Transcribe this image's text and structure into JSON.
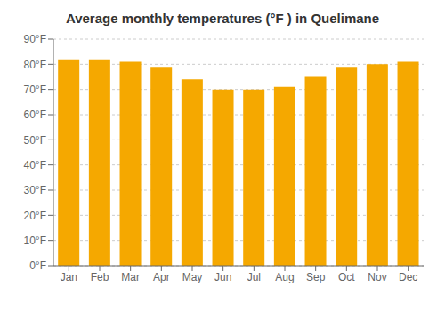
{
  "chart_data": {
    "type": "bar",
    "title": "Average monthly temperatures (°F ) in Quelimane",
    "categories": [
      "Jan",
      "Feb",
      "Mar",
      "Apr",
      "May",
      "Jun",
      "Jul",
      "Aug",
      "Sep",
      "Oct",
      "Nov",
      "Dec"
    ],
    "values": [
      82,
      82,
      81,
      79,
      74,
      70,
      70,
      71,
      75,
      79,
      80,
      81
    ],
    "color": "#F5A800",
    "ylim": [
      0,
      90
    ],
    "yticks": [
      {
        "value": 0,
        "label": "0°F"
      },
      {
        "value": 10,
        "label": "10°F"
      },
      {
        "value": 20,
        "label": "20°F"
      },
      {
        "value": 30,
        "label": "30°F"
      },
      {
        "value": 40,
        "label": "40°F"
      },
      {
        "value": 50,
        "label": "50°F"
      },
      {
        "value": 60,
        "label": "60°F"
      },
      {
        "value": 70,
        "label": "70°F"
      },
      {
        "value": 80,
        "label": "80°F"
      },
      {
        "value": 90,
        "label": "90°F"
      }
    ],
    "grid": true
  }
}
